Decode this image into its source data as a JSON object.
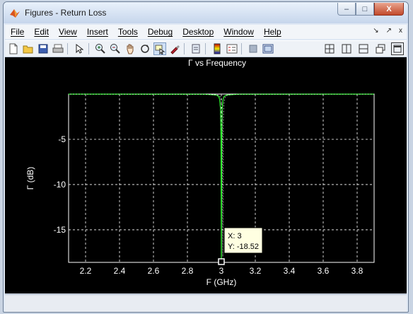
{
  "window": {
    "title": "Figures - Return Loss",
    "minimize_glyph": "–",
    "maximize_glyph": "□",
    "close_glyph": "X"
  },
  "menu": {
    "items": [
      "File",
      "Edit",
      "View",
      "Insert",
      "Tools",
      "Debug",
      "Desktop",
      "Window",
      "Help"
    ],
    "right_glyphs": [
      "↘",
      "↗",
      "x"
    ]
  },
  "toolbar": {
    "icons": [
      "new-figure-icon",
      "open-file-icon",
      "save-icon",
      "print-icon",
      "arrow-select-icon",
      "zoom-in-icon",
      "zoom-out-icon",
      "pan-hand-icon",
      "rotate-3d-icon",
      "data-cursor-icon",
      "brush-icon",
      "link-plot-icon",
      "colorbar-icon",
      "legend-icon",
      "hide-plot-tools-icon",
      "show-plot-tools-icon"
    ],
    "layout_icons": [
      "tile-icon",
      "split-vertical-icon",
      "split-horizontal-icon",
      "float-icon",
      "dock-icon"
    ]
  },
  "colors": {
    "plot_background": "#000000",
    "line": "#33ff33",
    "grid": "#ffffff",
    "tooltip_bg": "#ffffe1"
  },
  "chart_data": {
    "type": "line",
    "title": "Γ vs Frequency",
    "xlabel": "F (GHz)",
    "ylabel": "Γ (dB)",
    "xlim": [
      2.1,
      3.9
    ],
    "ylim": [
      -18.6,
      0
    ],
    "xticks": [
      "2.2",
      "2.4",
      "2.6",
      "2.8",
      "3",
      "3.2",
      "3.4",
      "3.6",
      "3.8"
    ],
    "yticks": [
      "-5",
      "-10",
      "-15"
    ],
    "grid": true,
    "series": [
      {
        "x": [
          2.1,
          2.9,
          2.97,
          2.985,
          2.99,
          2.995,
          2.998,
          3.0,
          3.002,
          3.005,
          3.01,
          3.015,
          3.03,
          3.1,
          3.9
        ],
        "values": [
          -0.01,
          -0.02,
          -0.1,
          -0.3,
          -0.6,
          -1.6,
          -5.0,
          -18.52,
          -5.0,
          -1.6,
          -0.6,
          -0.3,
          -0.1,
          -0.02,
          -0.01
        ]
      }
    ],
    "datatip": {
      "x_label": "X: 3",
      "y_label": "Y: -18.52",
      "x": 3,
      "y": -18.52
    }
  }
}
